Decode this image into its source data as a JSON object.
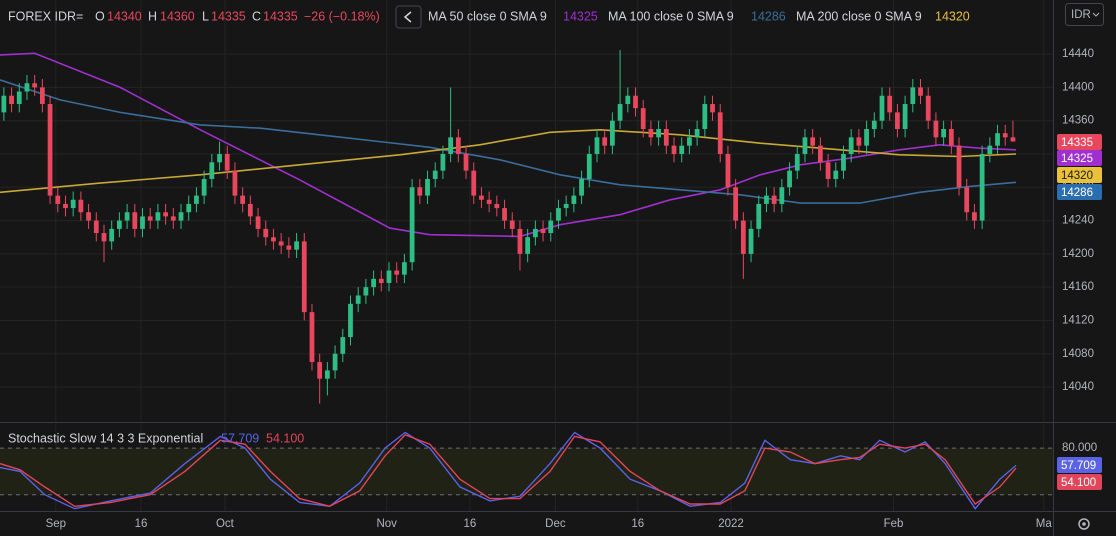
{
  "chart_data": [
    {
      "type": "candlestick",
      "symbol": "FOREX IDR=",
      "currency": "IDR",
      "ohlc_legend": [
        {
          "label": "O",
          "value": 14340
        },
        {
          "label": "H",
          "value": 14360
        },
        {
          "label": "L",
          "value": 14335
        },
        {
          "label": "C",
          "value": 14335
        }
      ],
      "change": "−26 (−0.18%)",
      "up_color": "#2ebd85",
      "down_color": "#e8475d",
      "open": [
        14370,
        14390,
        14380,
        14395,
        14405,
        14400,
        14380,
        14270,
        14260,
        14255,
        14265,
        14250,
        14240,
        14225,
        14215,
        14230,
        14240,
        14250,
        14230,
        14245,
        14240,
        14250,
        14245,
        14240,
        14250,
        14260,
        14270,
        14290,
        14310,
        14320,
        14300,
        14270,
        14260,
        14245,
        14230,
        14220,
        14215,
        14210,
        14205,
        14215,
        14130,
        14070,
        14050,
        14060,
        14080,
        14100,
        14140,
        14150,
        14160,
        14170,
        14165,
        14180,
        14175,
        14190,
        14280,
        14270,
        14290,
        14300,
        14320,
        14340,
        14320,
        14300,
        14270,
        14265,
        14260,
        14255,
        14240,
        14230,
        14200,
        14220,
        14230,
        14225,
        14240,
        14255,
        14260,
        14270,
        14290,
        14320,
        14340,
        14330,
        14360,
        14380,
        14390,
        14375,
        14350,
        14340,
        14350,
        14330,
        14320,
        14330,
        14340,
        14350,
        14380,
        14370,
        14320,
        14280,
        14240,
        14200,
        14230,
        14260,
        14270,
        14260,
        14280,
        14300,
        14320,
        14340,
        14330,
        14310,
        14290,
        14300,
        14320,
        14340,
        14330,
        14350,
        14360,
        14390,
        14370,
        14350,
        14380,
        14400,
        14390,
        14360,
        14340,
        14350,
        14330,
        14280,
        14250,
        14240,
        14320,
        14330,
        14345,
        14340
      ],
      "high": [
        14400,
        14400,
        14405,
        14415,
        14415,
        14410,
        14390,
        14280,
        14270,
        14275,
        14275,
        14260,
        14250,
        14235,
        14240,
        14250,
        14260,
        14260,
        14255,
        14255,
        14260,
        14260,
        14255,
        14260,
        14270,
        14280,
        14300,
        14320,
        14335,
        14330,
        14310,
        14280,
        14270,
        14255,
        14240,
        14230,
        14225,
        14220,
        14225,
        14225,
        14140,
        14080,
        14070,
        14090,
        14110,
        14150,
        14160,
        14170,
        14180,
        14180,
        14190,
        14190,
        14200,
        14290,
        14290,
        14300,
        14310,
        14330,
        14400,
        14350,
        14330,
        14310,
        14280,
        14275,
        14270,
        14265,
        14250,
        14240,
        14230,
        14240,
        14240,
        14250,
        14265,
        14270,
        14280,
        14300,
        14330,
        14350,
        14350,
        14370,
        14445,
        14400,
        14400,
        14385,
        14360,
        14360,
        14360,
        14340,
        14340,
        14350,
        14360,
        14390,
        14390,
        14380,
        14330,
        14290,
        14250,
        14240,
        14270,
        14280,
        14280,
        14290,
        14310,
        14330,
        14350,
        14350,
        14340,
        14320,
        14310,
        14330,
        14350,
        14350,
        14360,
        14370,
        14400,
        14400,
        14380,
        14390,
        14410,
        14410,
        14400,
        14370,
        14360,
        14360,
        14340,
        14290,
        14260,
        14330,
        14340,
        14355,
        14355,
        14360
      ],
      "low": [
        14360,
        14370,
        14370,
        14385,
        14390,
        14370,
        14260,
        14250,
        14245,
        14245,
        14240,
        14230,
        14215,
        14190,
        14205,
        14220,
        14230,
        14220,
        14220,
        14230,
        14230,
        14235,
        14230,
        14230,
        14240,
        14250,
        14260,
        14280,
        14300,
        14290,
        14260,
        14250,
        14235,
        14220,
        14210,
        14205,
        14200,
        14195,
        14195,
        14120,
        14060,
        14020,
        14030,
        14050,
        14070,
        14090,
        14130,
        14140,
        14150,
        14155,
        14155,
        14165,
        14165,
        14180,
        14260,
        14260,
        14280,
        14290,
        14310,
        14310,
        14290,
        14260,
        14255,
        14250,
        14245,
        14230,
        14220,
        14180,
        14190,
        14210,
        14215,
        14215,
        14230,
        14245,
        14250,
        14260,
        14280,
        14310,
        14320,
        14320,
        14350,
        14370,
        14365,
        14340,
        14330,
        14330,
        14320,
        14310,
        14310,
        14320,
        14330,
        14340,
        14360,
        14310,
        14270,
        14230,
        14170,
        14190,
        14220,
        14250,
        14250,
        14250,
        14270,
        14290,
        14310,
        14320,
        14300,
        14280,
        14280,
        14290,
        14310,
        14320,
        14320,
        14340,
        14350,
        14360,
        14340,
        14340,
        14370,
        14380,
        14350,
        14330,
        14330,
        14320,
        14270,
        14240,
        14230,
        14230,
        14310,
        14320,
        14330,
        14335
      ],
      "close": [
        14390,
        14380,
        14395,
        14405,
        14400,
        14380,
        14270,
        14260,
        14255,
        14265,
        14250,
        14240,
        14225,
        14215,
        14230,
        14240,
        14250,
        14230,
        14245,
        14240,
        14250,
        14245,
        14240,
        14250,
        14260,
        14270,
        14290,
        14310,
        14320,
        14300,
        14270,
        14260,
        14245,
        14230,
        14220,
        14215,
        14210,
        14205,
        14215,
        14130,
        14070,
        14050,
        14060,
        14080,
        14100,
        14140,
        14150,
        14160,
        14170,
        14165,
        14180,
        14175,
        14190,
        14280,
        14270,
        14290,
        14300,
        14320,
        14340,
        14320,
        14300,
        14270,
        14265,
        14260,
        14255,
        14240,
        14230,
        14200,
        14220,
        14230,
        14225,
        14240,
        14255,
        14260,
        14270,
        14290,
        14320,
        14340,
        14330,
        14360,
        14380,
        14390,
        14375,
        14350,
        14340,
        14350,
        14330,
        14320,
        14330,
        14340,
        14350,
        14380,
        14370,
        14320,
        14280,
        14240,
        14200,
        14230,
        14260,
        14270,
        14260,
        14280,
        14300,
        14320,
        14340,
        14330,
        14310,
        14290,
        14300,
        14320,
        14340,
        14330,
        14350,
        14360,
        14390,
        14370,
        14350,
        14380,
        14400,
        14390,
        14360,
        14340,
        14350,
        14330,
        14280,
        14250,
        14240,
        14320,
        14330,
        14345,
        14340,
        14335
      ],
      "series": [
        {
          "type": "line",
          "name": "MA 50 close 0 SMA 9",
          "color": "#a02fd0",
          "last": 14325,
          "x": [
            -0.5,
            4,
            15.1,
            25.5,
            38.4,
            50.1,
            55.3,
            67,
            72.2,
            80,
            86.5,
            93,
            98.2,
            103.4,
            109.9,
            116.3,
            121.5,
            126.7,
            131.4
          ],
          "values": [
            14439,
            14441,
            14400,
            14349,
            14289,
            14231,
            14223,
            14221,
            14235,
            14247,
            14265,
            14277,
            14295,
            14307,
            14315,
            14325,
            14331,
            14327,
            14325
          ]
        },
        {
          "type": "line",
          "name": "MA 100 close 0 SMA 9",
          "color": "#3a6d9c",
          "last": 14286,
          "x": [
            -0.5,
            7.3,
            15.1,
            25.5,
            33.3,
            44.9,
            55.3,
            64.4,
            72.2,
            80,
            87.8,
            95.6,
            103.4,
            111.1,
            118.9,
            125.4,
            131.4
          ],
          "values": [
            14409,
            14385,
            14370,
            14355,
            14351,
            14339,
            14328,
            14313,
            14295,
            14283,
            14277,
            14271,
            14261,
            14261,
            14274,
            14281,
            14286
          ]
        },
        {
          "type": "line",
          "name": "MA 200 close 0 SMA 9",
          "color": "#c9a935",
          "last": 14320,
          "x": [
            -0.5,
            12.5,
            25.5,
            38.4,
            51.4,
            61.8,
            70.9,
            77.4,
            87.8,
            98.2,
            108.6,
            116.3,
            124.1,
            131.4
          ],
          "values": [
            14274,
            14285,
            14295,
            14307,
            14319,
            14331,
            14346,
            14349,
            14343,
            14333,
            14325,
            14319,
            14317,
            14320
          ]
        }
      ],
      "xlim": [
        -0.5,
        136.2
      ],
      "ylim": [
        13998,
        14505
      ],
      "yticks": [
        14040,
        14080,
        14120,
        14160,
        14200,
        14240,
        14280,
        14320,
        14360,
        14400,
        14440
      ],
      "grid": true
    },
    {
      "type": "line",
      "title": "Stochastic Slow 14 3 3 Exponential",
      "series": [
        {
          "color": "#5a62e6",
          "last_label": "57.709",
          "x": [
            -0.5,
            2.1,
            5.3,
            9.2,
            13.8,
            19,
            23.5,
            28.1,
            31.3,
            34.6,
            38.4,
            42.3,
            46.2,
            49.5,
            52.1,
            55.3,
            59.2,
            63.1,
            67,
            70.9,
            74.1,
            77.4,
            81.3,
            85.2,
            89.1,
            93,
            96.2,
            98.8,
            102.1,
            105.3,
            108.6,
            111.1,
            113.7,
            117,
            119.6,
            122.2,
            126.1,
            129.3,
            131.4
          ],
          "values": [
            55,
            50,
            20,
            2,
            12,
            22,
            60,
            95,
            80,
            40,
            10,
            5,
            35,
            80,
            100,
            80,
            30,
            12,
            18,
            60,
            100,
            80,
            40,
            25,
            5,
            10,
            35,
            90,
            65,
            60,
            70,
            65,
            90,
            75,
            88,
            60,
            2,
            40,
            57.709
          ]
        },
        {
          "color": "#e0455a",
          "last_label": "54.100",
          "x": [
            -0.5,
            2.1,
            5.3,
            9.2,
            13.8,
            19,
            23.5,
            28.1,
            31.3,
            34.6,
            38.4,
            42.3,
            46.2,
            49.5,
            52.1,
            55.3,
            59.2,
            63.1,
            67,
            70.9,
            74.1,
            77.4,
            81.3,
            85.2,
            89.1,
            93,
            96.2,
            98.8,
            102.1,
            105.3,
            108.6,
            111.1,
            113.7,
            117,
            119.6,
            122.2,
            126.1,
            129.3,
            131.4
          ],
          "values": [
            60,
            52,
            30,
            5,
            10,
            20,
            50,
            90,
            85,
            50,
            15,
            5,
            25,
            70,
            97,
            85,
            40,
            15,
            15,
            50,
            95,
            88,
            50,
            25,
            8,
            8,
            25,
            80,
            75,
            60,
            65,
            68,
            85,
            80,
            85,
            65,
            8,
            30,
            54.1
          ]
        }
      ],
      "xlim": [
        -0.5,
        136.2
      ],
      "ylim": [
        -1,
        111
      ],
      "yticks": [
        {
          "value": 80,
          "label": "80.000"
        }
      ],
      "band": [
        20,
        80
      ],
      "xticks": [
        {
          "value": 6.75,
          "label": "Sep"
        },
        {
          "value": 17.8,
          "label": "16"
        },
        {
          "value": 28.7,
          "label": "Oct"
        },
        {
          "value": 49.7,
          "label": "Nov"
        },
        {
          "value": 60.5,
          "label": "16"
        },
        {
          "value": 71.6,
          "label": "Dec"
        },
        {
          "value": 82.3,
          "label": "16"
        },
        {
          "value": 94.4,
          "label": "2022"
        },
        {
          "value": 115.5,
          "label": "Feb"
        },
        {
          "value": 135,
          "label": "Ma"
        }
      ]
    }
  ]
}
